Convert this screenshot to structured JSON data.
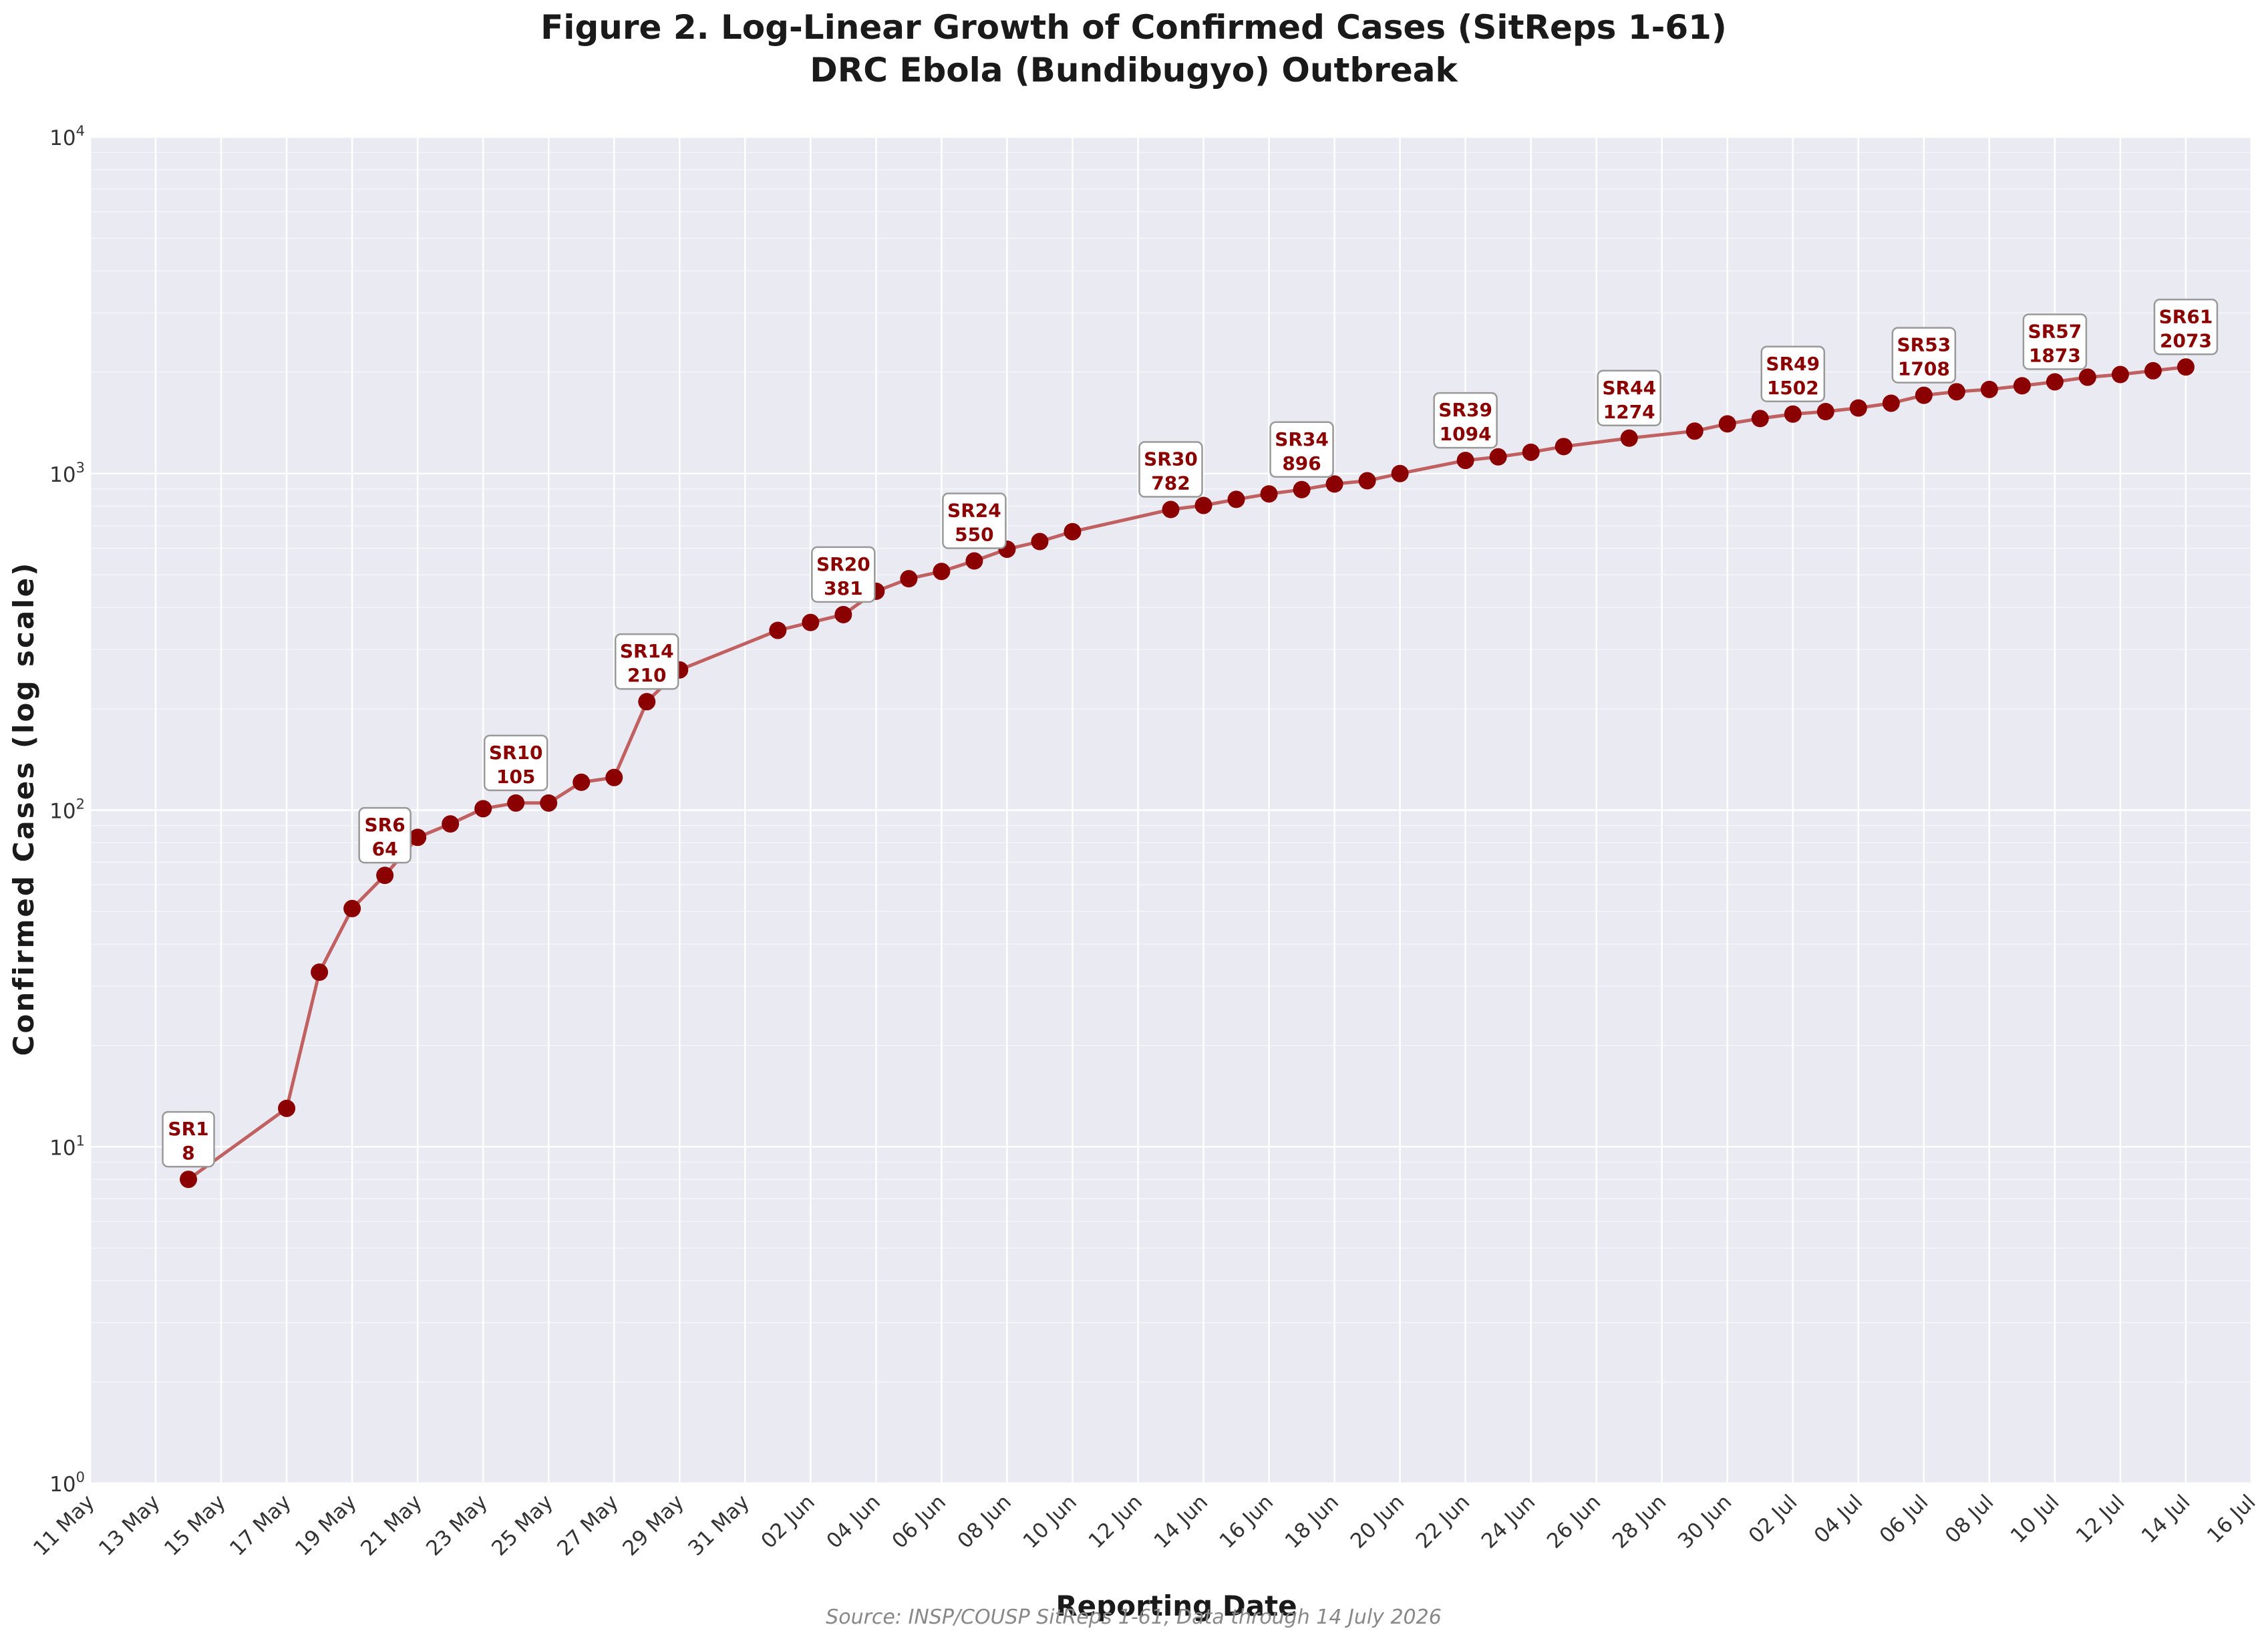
{
  "chart_data": {
    "type": "line",
    "title": "Figure 2. Log-Linear Growth of Confirmed Cases (SitReps 1-61)",
    "subtitle": "DRC Ebola (Bundibugyo) Outbreak",
    "xlabel": "Reporting Date",
    "ylabel": "Confirmed Cases (log scale)",
    "yscale": "log",
    "ylim": [
      1,
      10000
    ],
    "xlim": [
      "2026-05-11",
      "2026-07-16"
    ],
    "grid": true,
    "source": "Source: INSP/COUSP SitReps 1-61, Data through 14 July 2026",
    "colors": {
      "line": "#c06060",
      "marker": "#8b0000",
      "annotation": "#8b0000",
      "plot_bg": "#eaeaf2"
    },
    "y_tick_labels": [
      {
        "base": "10",
        "exp": "0",
        "value": 1
      },
      {
        "base": "10",
        "exp": "1",
        "value": 10
      },
      {
        "base": "10",
        "exp": "2",
        "value": 100
      },
      {
        "base": "10",
        "exp": "3",
        "value": 1000
      },
      {
        "base": "10",
        "exp": "4",
        "value": 10000
      }
    ],
    "x_tick_labels": [
      {
        "date": "2026-05-11",
        "label": "11 May"
      },
      {
        "date": "2026-05-13",
        "label": "13 May"
      },
      {
        "date": "2026-05-15",
        "label": "15 May"
      },
      {
        "date": "2026-05-17",
        "label": "17 May"
      },
      {
        "date": "2026-05-19",
        "label": "19 May"
      },
      {
        "date": "2026-05-21",
        "label": "21 May"
      },
      {
        "date": "2026-05-23",
        "label": "23 May"
      },
      {
        "date": "2026-05-25",
        "label": "25 May"
      },
      {
        "date": "2026-05-27",
        "label": "27 May"
      },
      {
        "date": "2026-05-29",
        "label": "29 May"
      },
      {
        "date": "2026-05-31",
        "label": "31 May"
      },
      {
        "date": "2026-06-02",
        "label": "02 Jun"
      },
      {
        "date": "2026-06-04",
        "label": "04 Jun"
      },
      {
        "date": "2026-06-06",
        "label": "06 Jun"
      },
      {
        "date": "2026-06-08",
        "label": "08 Jun"
      },
      {
        "date": "2026-06-10",
        "label": "10 Jun"
      },
      {
        "date": "2026-06-12",
        "label": "12 Jun"
      },
      {
        "date": "2026-06-14",
        "label": "14 Jun"
      },
      {
        "date": "2026-06-16",
        "label": "16 Jun"
      },
      {
        "date": "2026-06-18",
        "label": "18 Jun"
      },
      {
        "date": "2026-06-20",
        "label": "20 Jun"
      },
      {
        "date": "2026-06-22",
        "label": "22 Jun"
      },
      {
        "date": "2026-06-24",
        "label": "24 Jun"
      },
      {
        "date": "2026-06-26",
        "label": "26 Jun"
      },
      {
        "date": "2026-06-28",
        "label": "28 Jun"
      },
      {
        "date": "2026-06-30",
        "label": "30 Jun"
      },
      {
        "date": "2026-07-02",
        "label": "02 Jul"
      },
      {
        "date": "2026-07-04",
        "label": "04 Jul"
      },
      {
        "date": "2026-07-06",
        "label": "06 Jul"
      },
      {
        "date": "2026-07-08",
        "label": "08 Jul"
      },
      {
        "date": "2026-07-10",
        "label": "10 Jul"
      },
      {
        "date": "2026-07-12",
        "label": "12 Jul"
      },
      {
        "date": "2026-07-14",
        "label": "14 Jul"
      },
      {
        "date": "2026-07-16",
        "label": "16 Jul"
      }
    ],
    "series": [
      {
        "points": [
          {
            "date": "2026-05-14",
            "value": 8
          },
          {
            "date": "2026-05-17",
            "value": 13
          },
          {
            "date": "2026-05-18",
            "value": 33
          },
          {
            "date": "2026-05-19",
            "value": 51
          },
          {
            "date": "2026-05-20",
            "value": 64
          },
          {
            "date": "2026-05-21",
            "value": 83
          },
          {
            "date": "2026-05-22",
            "value": 91
          },
          {
            "date": "2026-05-23",
            "value": 101
          },
          {
            "date": "2026-05-24",
            "value": 105
          },
          {
            "date": "2026-05-25",
            "value": 105
          },
          {
            "date": "2026-05-26",
            "value": 121
          },
          {
            "date": "2026-05-27",
            "value": 125
          },
          {
            "date": "2026-05-28",
            "value": 210
          },
          {
            "date": "2026-05-29",
            "value": 261
          },
          {
            "date": "2026-06-01",
            "value": 342
          },
          {
            "date": "2026-06-02",
            "value": 361
          },
          {
            "date": "2026-06-03",
            "value": 381
          },
          {
            "date": "2026-06-04",
            "value": 447
          },
          {
            "date": "2026-06-05",
            "value": 487
          },
          {
            "date": "2026-06-06",
            "value": 512
          },
          {
            "date": "2026-06-07",
            "value": 550
          },
          {
            "date": "2026-06-08",
            "value": 596
          },
          {
            "date": "2026-06-09",
            "value": 628
          },
          {
            "date": "2026-06-10",
            "value": 672
          },
          {
            "date": "2026-06-13",
            "value": 782
          },
          {
            "date": "2026-06-14",
            "value": 804
          },
          {
            "date": "2026-06-15",
            "value": 838
          },
          {
            "date": "2026-06-16",
            "value": 870
          },
          {
            "date": "2026-06-17",
            "value": 896
          },
          {
            "date": "2026-06-18",
            "value": 931
          },
          {
            "date": "2026-06-19",
            "value": 952
          },
          {
            "date": "2026-06-20",
            "value": 1000
          },
          {
            "date": "2026-06-22",
            "value": 1094
          },
          {
            "date": "2026-06-23",
            "value": 1121
          },
          {
            "date": "2026-06-24",
            "value": 1157
          },
          {
            "date": "2026-06-25",
            "value": 1203
          },
          {
            "date": "2026-06-27",
            "value": 1274
          },
          {
            "date": "2026-06-29",
            "value": 1337
          },
          {
            "date": "2026-06-30",
            "value": 1405
          },
          {
            "date": "2026-07-01",
            "value": 1457
          },
          {
            "date": "2026-07-02",
            "value": 1502
          },
          {
            "date": "2026-07-03",
            "value": 1528
          },
          {
            "date": "2026-07-04",
            "value": 1566
          },
          {
            "date": "2026-07-05",
            "value": 1618
          },
          {
            "date": "2026-07-06",
            "value": 1708
          },
          {
            "date": "2026-07-07",
            "value": 1750
          },
          {
            "date": "2026-07-08",
            "value": 1778
          },
          {
            "date": "2026-07-09",
            "value": 1823
          },
          {
            "date": "2026-07-10",
            "value": 1873
          },
          {
            "date": "2026-07-11",
            "value": 1933
          },
          {
            "date": "2026-07-12",
            "value": 1969
          },
          {
            "date": "2026-07-13",
            "value": 2020
          },
          {
            "date": "2026-07-14",
            "value": 2073
          }
        ]
      }
    ],
    "annotations": [
      {
        "date": "2026-05-14",
        "value": 8,
        "label": "SR1",
        "count": "8"
      },
      {
        "date": "2026-05-20",
        "value": 64,
        "label": "SR6",
        "count": "64"
      },
      {
        "date": "2026-05-24",
        "value": 105,
        "label": "SR10",
        "count": "105"
      },
      {
        "date": "2026-05-28",
        "value": 210,
        "label": "SR14",
        "count": "210"
      },
      {
        "date": "2026-06-03",
        "value": 381,
        "label": "SR20",
        "count": "381"
      },
      {
        "date": "2026-06-07",
        "value": 550,
        "label": "SR24",
        "count": "550"
      },
      {
        "date": "2026-06-13",
        "value": 782,
        "label": "SR30",
        "count": "782"
      },
      {
        "date": "2026-06-17",
        "value": 896,
        "label": "SR34",
        "count": "896"
      },
      {
        "date": "2026-06-22",
        "value": 1094,
        "label": "SR39",
        "count": "1094"
      },
      {
        "date": "2026-06-27",
        "value": 1274,
        "label": "SR44",
        "count": "1274"
      },
      {
        "date": "2026-07-02",
        "value": 1502,
        "label": "SR49",
        "count": "1502"
      },
      {
        "date": "2026-07-06",
        "value": 1708,
        "label": "SR53",
        "count": "1708"
      },
      {
        "date": "2026-07-10",
        "value": 1873,
        "label": "SR57",
        "count": "1873"
      },
      {
        "date": "2026-07-14",
        "value": 2073,
        "label": "SR61",
        "count": "2073"
      }
    ]
  }
}
